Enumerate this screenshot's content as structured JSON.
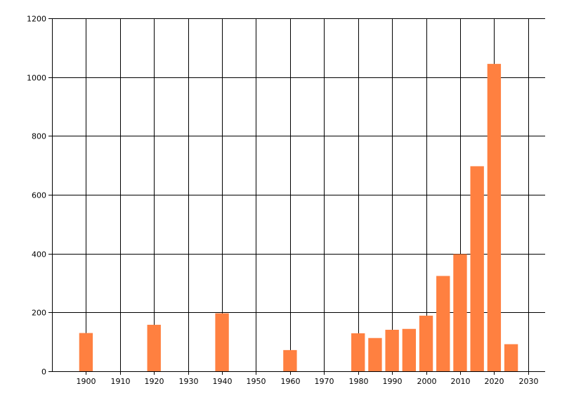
{
  "chart_data": {
    "type": "bar",
    "title": "",
    "xlabel": "",
    "ylabel": "",
    "xlim": [
      1890,
      2035
    ],
    "ylim": [
      0,
      1200
    ],
    "x_ticks": [
      1900,
      1910,
      1920,
      1930,
      1940,
      1950,
      1960,
      1970,
      1980,
      1990,
      2000,
      2010,
      2020,
      2030
    ],
    "y_ticks": [
      0,
      200,
      400,
      600,
      800,
      1000,
      1200
    ],
    "grid": true,
    "legend": "none",
    "bar_width_years": 4,
    "series": [
      {
        "x": [
          1900,
          1920,
          1940,
          1960,
          1980,
          1985,
          1990,
          1995,
          2000,
          2005,
          2010,
          2015,
          2020,
          2025
        ],
        "values": [
          130,
          158,
          197,
          72,
          129,
          113,
          141,
          144,
          189,
          324,
          398,
          697,
          1045,
          92
        ],
        "color": "#ff8040"
      }
    ]
  }
}
